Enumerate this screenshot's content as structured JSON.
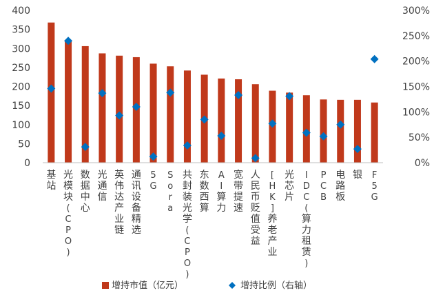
{
  "chart_data": {
    "type": "bar",
    "categories": [
      "基站",
      "光模块(CPO)",
      "数据中心",
      "光通信",
      "英伟达产业链",
      "通讯设备精选",
      "5G",
      "Sora",
      "共封装光学(CPO)",
      "东数西算",
      "AI算力",
      "宽带提速",
      "人民币贬值受益",
      "[HK]养老产业",
      "光芯片",
      "IDC(算力租赁)",
      "PCB",
      "电路板",
      "银",
      "F5G"
    ],
    "series": [
      {
        "name": "增持市值（亿元）",
        "axis": "left",
        "color": "#C0391B",
        "values": [
          368,
          318,
          306,
          287,
          281,
          277,
          260,
          253,
          242,
          231,
          221,
          219,
          206,
          189,
          184,
          177,
          166,
          165,
          165,
          158
        ]
      },
      {
        "name": "增持比例（右轴）",
        "axis": "right",
        "color": "#0070C0",
        "marker": "diamond",
        "values": [
          146,
          240,
          31,
          137,
          93,
          110,
          12,
          138,
          34,
          85,
          53,
          133,
          9,
          77,
          131,
          59,
          52,
          75,
          27,
          204
        ]
      }
    ],
    "y_left": {
      "min": 0,
      "max": 400,
      "ticks": [
        "0",
        "50",
        "100",
        "150",
        "200",
        "250",
        "300",
        "350",
        "400"
      ]
    },
    "y_right": {
      "min": 0,
      "max": 300,
      "ticks": [
        "0%",
        "50%",
        "100%",
        "150%",
        "200%",
        "250%",
        "300%"
      ]
    },
    "grid": false,
    "legend_position": "bottom"
  }
}
